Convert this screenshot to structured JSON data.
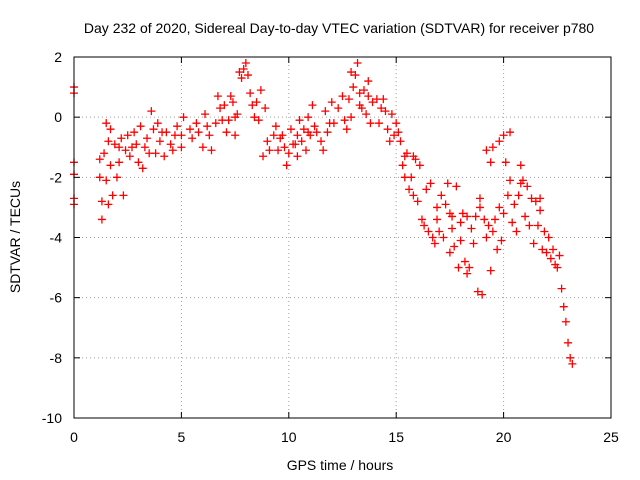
{
  "chart_data": {
    "type": "scatter",
    "title": "Day 232 of 2020, Sidereal Day-to-day VTEC variation (SDTVAR) for receiver p780",
    "xlabel": "GPS time / hours",
    "ylabel": "SDTVAR / TECUs",
    "xlim": [
      0,
      25
    ],
    "ylim": [
      -10,
      2
    ],
    "x_ticks": [
      0,
      5,
      10,
      15,
      20,
      25
    ],
    "y_ticks": [
      -10,
      -8,
      -6,
      -4,
      -2,
      0,
      2
    ],
    "grid": true,
    "marker": "plus",
    "colors": {
      "series": "#ff0000",
      "grid": "#a0a0a0",
      "axes": "#000000"
    },
    "series": [
      {
        "name": "SDTVAR",
        "points": [
          [
            0.0,
            1.0
          ],
          [
            0.0,
            0.8
          ],
          [
            0.0,
            -1.5
          ],
          [
            0.0,
            -1.9
          ],
          [
            0.0,
            -2.7
          ],
          [
            0.0,
            -2.9
          ],
          [
            1.2,
            -1.4
          ],
          [
            1.2,
            -2.0
          ],
          [
            1.3,
            -2.8
          ],
          [
            1.3,
            -3.4
          ],
          [
            1.4,
            -1.2
          ],
          [
            1.5,
            -2.1
          ],
          [
            1.6,
            -0.8
          ],
          [
            1.7,
            -0.4
          ],
          [
            1.7,
            -1.6
          ],
          [
            1.8,
            -2.6
          ],
          [
            1.9,
            -0.9
          ],
          [
            2.0,
            -2.0
          ],
          [
            2.1,
            -1.0
          ],
          [
            2.2,
            -0.7
          ],
          [
            2.3,
            -2.6
          ],
          [
            2.4,
            -1.1
          ],
          [
            2.5,
            -0.6
          ],
          [
            2.6,
            -1.3
          ],
          [
            2.8,
            -0.5
          ],
          [
            2.9,
            -0.9
          ],
          [
            3.0,
            -1.5
          ],
          [
            3.1,
            -0.3
          ],
          [
            3.2,
            -1.7
          ],
          [
            3.4,
            -0.7
          ],
          [
            3.5,
            -1.2
          ],
          [
            3.6,
            0.2
          ],
          [
            3.7,
            -0.4
          ],
          [
            3.8,
            -1.2
          ],
          [
            3.9,
            -0.2
          ],
          [
            4.0,
            -0.8
          ],
          [
            4.2,
            -1.3
          ],
          [
            4.3,
            -0.5
          ],
          [
            4.5,
            -0.9
          ],
          [
            4.6,
            -1.1
          ],
          [
            4.8,
            -0.3
          ],
          [
            5.0,
            -0.6
          ],
          [
            5.0,
            -1.0
          ],
          [
            5.1,
            0.0
          ],
          [
            5.5,
            -0.7
          ],
          [
            5.7,
            -0.2
          ],
          [
            5.8,
            -0.5
          ],
          [
            6.0,
            -1.0
          ],
          [
            6.1,
            0.1
          ],
          [
            6.2,
            -0.3
          ],
          [
            6.4,
            -1.1
          ],
          [
            6.6,
            -0.2
          ],
          [
            6.7,
            0.7
          ],
          [
            6.8,
            0.3
          ],
          [
            7.0,
            0.4
          ],
          [
            7.1,
            -0.5
          ],
          [
            7.2,
            -0.1
          ],
          [
            7.3,
            0.7
          ],
          [
            7.4,
            0.5
          ],
          [
            7.5,
            -0.6
          ],
          [
            7.6,
            0.1
          ],
          [
            7.7,
            1.5
          ],
          [
            7.8,
            1.3
          ],
          [
            7.9,
            1.6
          ],
          [
            8.0,
            1.8
          ],
          [
            8.1,
            1.4
          ],
          [
            8.2,
            0.8
          ],
          [
            8.3,
            0.4
          ],
          [
            8.5,
            0.5
          ],
          [
            8.6,
            -0.1
          ],
          [
            8.7,
            0.9
          ],
          [
            8.8,
            -1.3
          ],
          [
            8.9,
            0.3
          ],
          [
            9.0,
            -0.8
          ],
          [
            9.1,
            -1.1
          ],
          [
            9.3,
            -0.6
          ],
          [
            9.5,
            -1.1
          ],
          [
            9.6,
            -0.7
          ],
          [
            9.7,
            -0.6
          ],
          [
            9.8,
            -1.0
          ],
          [
            9.9,
            -1.6
          ],
          [
            10.0,
            -1.2
          ],
          [
            10.1,
            -0.4
          ],
          [
            10.2,
            -0.9
          ],
          [
            10.3,
            -0.9
          ],
          [
            10.4,
            -1.3
          ],
          [
            10.5,
            -0.1
          ],
          [
            10.6,
            -0.8
          ],
          [
            10.7,
            -0.4
          ],
          [
            10.8,
            -1.1
          ],
          [
            10.9,
            0.0
          ],
          [
            11.0,
            -0.6
          ],
          [
            11.1,
            0.4
          ],
          [
            11.2,
            -0.3
          ],
          [
            11.5,
            -0.8
          ],
          [
            11.6,
            -1.1
          ],
          [
            11.7,
            0.2
          ],
          [
            11.8,
            -0.5
          ],
          [
            12.0,
            0.5
          ],
          [
            12.1,
            -0.2
          ],
          [
            12.5,
            0.7
          ],
          [
            12.6,
            -0.1
          ],
          [
            12.7,
            -0.4
          ],
          [
            12.8,
            0.6
          ],
          [
            12.9,
            0.0
          ],
          [
            13.0,
            1.0
          ],
          [
            13.1,
            1.4
          ],
          [
            13.2,
            1.8
          ],
          [
            13.3,
            0.8
          ],
          [
            13.4,
            0.3
          ],
          [
            13.5,
            0.9
          ],
          [
            13.6,
            0.1
          ],
          [
            13.7,
            1.2
          ],
          [
            13.8,
            -0.2
          ],
          [
            13.9,
            0.5
          ],
          [
            14.1,
            0.6
          ],
          [
            14.2,
            -0.2
          ],
          [
            14.4,
            0.6
          ],
          [
            14.5,
            0.2
          ],
          [
            14.6,
            -0.4
          ],
          [
            14.7,
            -0.8
          ],
          [
            14.8,
            0.1
          ],
          [
            15.0,
            -0.2
          ],
          [
            15.1,
            -0.5
          ],
          [
            15.2,
            -0.8
          ],
          [
            15.3,
            -1.6
          ],
          [
            15.4,
            -2.0
          ],
          [
            15.5,
            -1.2
          ],
          [
            15.6,
            -2.4
          ],
          [
            15.7,
            -2.0
          ],
          [
            15.8,
            -1.3
          ],
          [
            15.9,
            -1.4
          ],
          [
            16.0,
            -2.8
          ],
          [
            16.1,
            -1.6
          ],
          [
            16.2,
            -3.4
          ],
          [
            16.3,
            -3.6
          ],
          [
            16.4,
            -2.4
          ],
          [
            16.5,
            -3.8
          ],
          [
            16.6,
            -2.2
          ],
          [
            16.8,
            -4.2
          ],
          [
            16.9,
            -3.0
          ],
          [
            17.0,
            -3.8
          ],
          [
            17.1,
            -2.6
          ],
          [
            17.2,
            -4.0
          ],
          [
            17.3,
            -2.9
          ],
          [
            17.4,
            -2.2
          ],
          [
            17.5,
            -3.2
          ],
          [
            17.6,
            -3.3
          ],
          [
            17.7,
            -4.3
          ],
          [
            17.8,
            -2.3
          ],
          [
            17.9,
            -5.0
          ],
          [
            18.0,
            -3.5
          ],
          [
            18.1,
            -3.2
          ],
          [
            18.2,
            -4.8
          ],
          [
            18.3,
            -5.2
          ],
          [
            18.4,
            -5.0
          ],
          [
            18.5,
            -3.7
          ],
          [
            18.6,
            -4.2
          ],
          [
            18.7,
            -3.3
          ],
          [
            18.8,
            -5.8
          ],
          [
            19.0,
            -5.9
          ],
          [
            19.1,
            -3.4
          ],
          [
            19.2,
            -4.0
          ],
          [
            19.3,
            -3.6
          ],
          [
            19.4,
            -5.1
          ],
          [
            19.5,
            -3.8
          ],
          [
            19.6,
            -3.4
          ],
          [
            19.7,
            -4.4
          ],
          [
            19.8,
            -3.0
          ],
          [
            19.9,
            -4.1
          ],
          [
            20.0,
            -3.2
          ],
          [
            20.1,
            -1.5
          ],
          [
            20.2,
            -2.6
          ],
          [
            20.3,
            -2.1
          ],
          [
            20.4,
            -3.5
          ],
          [
            20.5,
            -2.9
          ],
          [
            20.6,
            -3.8
          ],
          [
            20.7,
            -2.6
          ],
          [
            20.8,
            -1.6
          ],
          [
            20.9,
            -2.1
          ],
          [
            21.0,
            -3.3
          ],
          [
            21.1,
            -2.3
          ],
          [
            21.2,
            -3.6
          ],
          [
            21.3,
            -2.7
          ],
          [
            21.4,
            -4.2
          ],
          [
            21.5,
            -2.8
          ],
          [
            21.6,
            -3.6
          ],
          [
            21.7,
            -3.1
          ],
          [
            21.8,
            -4.4
          ],
          [
            21.9,
            -3.8
          ],
          [
            22.0,
            -4.5
          ],
          [
            22.1,
            -4.0
          ],
          [
            22.2,
            -4.7
          ],
          [
            22.3,
            -4.4
          ],
          [
            22.4,
            -4.9
          ],
          [
            22.5,
            -5.0
          ],
          [
            22.6,
            -4.6
          ],
          [
            22.7,
            -5.7
          ],
          [
            22.8,
            -6.3
          ],
          [
            22.9,
            -6.8
          ],
          [
            23.0,
            -7.5
          ],
          [
            23.1,
            -8.0
          ],
          [
            23.2,
            -8.2
          ],
          [
            16.7,
            -4.0
          ],
          [
            17.5,
            -4.5
          ],
          [
            18.0,
            -4.1
          ],
          [
            18.9,
            -2.7
          ],
          [
            19.2,
            -1.1
          ],
          [
            19.5,
            -1.0
          ],
          [
            19.8,
            -0.8
          ],
          [
            20.0,
            -0.6
          ],
          [
            20.3,
            -0.5
          ],
          [
            19.4,
            -1.5
          ],
          [
            18.9,
            -3.0
          ],
          [
            20.8,
            -2.2
          ],
          [
            21.7,
            -2.7
          ],
          [
            18.3,
            -3.3
          ],
          [
            17.6,
            -3.7
          ],
          [
            16.9,
            -3.4
          ],
          [
            15.8,
            -2.6
          ],
          [
            15.4,
            -1.3
          ],
          [
            14.9,
            -0.6
          ],
          [
            14.3,
            0.3
          ],
          [
            13.7,
            0.7
          ],
          [
            13.3,
            0.4
          ],
          [
            12.9,
            1.5
          ],
          [
            12.3,
            0.3
          ],
          [
            11.9,
            -0.2
          ],
          [
            11.3,
            -0.5
          ],
          [
            10.9,
            -0.5
          ],
          [
            10.4,
            -0.6
          ],
          [
            9.4,
            -0.3
          ],
          [
            8.4,
            0.0
          ],
          [
            7.5,
            0.0
          ],
          [
            6.9,
            -0.1
          ],
          [
            6.3,
            -0.6
          ],
          [
            5.4,
            -0.4
          ],
          [
            4.7,
            -0.6
          ],
          [
            4.1,
            -0.5
          ],
          [
            3.3,
            -1.0
          ],
          [
            2.7,
            -1.0
          ],
          [
            2.1,
            -1.5
          ],
          [
            1.6,
            -2.9
          ],
          [
            1.5,
            -0.2
          ]
        ]
      }
    ]
  }
}
